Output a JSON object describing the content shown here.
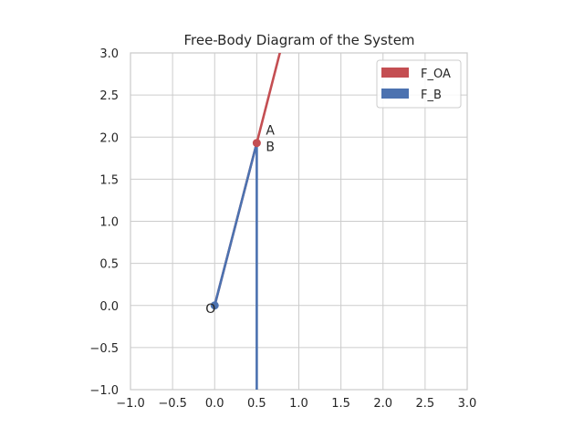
{
  "chart_data": {
    "type": "line",
    "title": "Free-Body Diagram of the System",
    "xlim": [
      -1.0,
      3.0
    ],
    "ylim": [
      -1.0,
      3.0
    ],
    "xticks": [
      "−1.0",
      "−0.5",
      "0.0",
      "0.5",
      "1.0",
      "1.5",
      "2.0",
      "2.5",
      "3.0"
    ],
    "yticks": [
      "−1.0",
      "−0.5",
      "0.0",
      "0.5",
      "1.0",
      "1.5",
      "2.0",
      "2.5",
      "3.0"
    ],
    "xtick_values": [
      -1.0,
      -0.5,
      0.0,
      0.5,
      1.0,
      1.5,
      2.0,
      2.5,
      3.0
    ],
    "ytick_values": [
      -1.0,
      -0.5,
      0.0,
      0.5,
      1.0,
      1.5,
      2.0,
      2.5,
      3.0
    ],
    "grid": true,
    "legend_position": "top-right",
    "series": [
      {
        "name": "F_OA",
        "color": "#c44e52",
        "x": [
          0.0,
          0.5,
          0.8
        ],
        "y": [
          0.0,
          1.93,
          3.1
        ]
      },
      {
        "name": "F_B",
        "color": "#4c72b0",
        "x": [
          0.0,
          0.5,
          0.5
        ],
        "y": [
          0.0,
          1.93,
          -1.0
        ]
      }
    ],
    "points": [
      {
        "label": "O",
        "x": 0.0,
        "y": 0.0,
        "color": "#4c72b0"
      },
      {
        "label": "A",
        "x": 0.5,
        "y": 1.93,
        "color": "#c44e52"
      }
    ],
    "annotations": [
      {
        "text": "O",
        "x": 0.0,
        "y": 0.0,
        "anchor": "left-below"
      },
      {
        "text": "A",
        "x": 0.5,
        "y": 1.93,
        "anchor": "right-above"
      },
      {
        "text": "B",
        "x": 0.5,
        "y": 1.93,
        "anchor": "right-below"
      }
    ]
  }
}
